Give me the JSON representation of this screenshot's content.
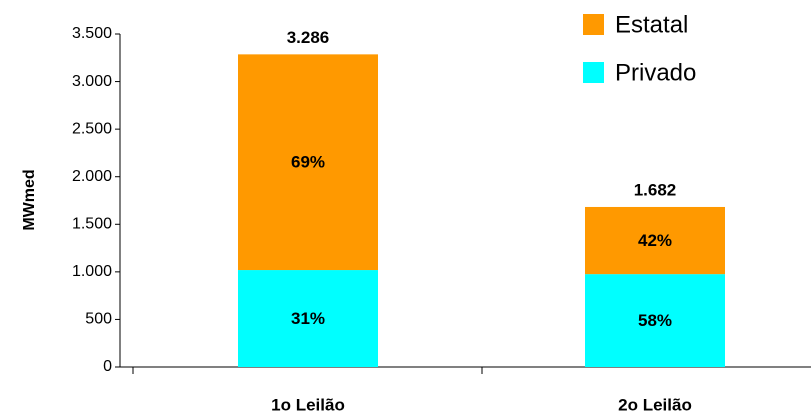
{
  "chart_data": {
    "type": "stacked_bar",
    "ylabel": "MWmed",
    "categories": [
      "1o Leilão",
      "2o Leilão"
    ],
    "series": [
      {
        "name": "Privado",
        "color": "#00ffff",
        "values": [
          1019,
          976
        ],
        "share_labels": [
          "31%",
          "58%"
        ]
      },
      {
        "name": "Estatal",
        "color": "#ff9900",
        "values": [
          2267,
          706
        ],
        "share_labels": [
          "69%",
          "42%"
        ]
      }
    ],
    "totals": [
      {
        "value": 3286,
        "label": "3.286"
      },
      {
        "value": 1682,
        "label": "1.682"
      }
    ],
    "ylim": [
      0,
      3500
    ],
    "yticks": [
      0,
      500,
      {
        "value": 1000,
        "label": "1.000"
      },
      {
        "value": 1500,
        "label": "1.500"
      },
      {
        "value": 2000,
        "label": "2.000"
      },
      {
        "value": 2500,
        "label": "2.500"
      },
      {
        "value": 3000,
        "label": "3.000"
      },
      {
        "value": 3500,
        "label": "3.500"
      }
    ],
    "legend": "top-right"
  }
}
